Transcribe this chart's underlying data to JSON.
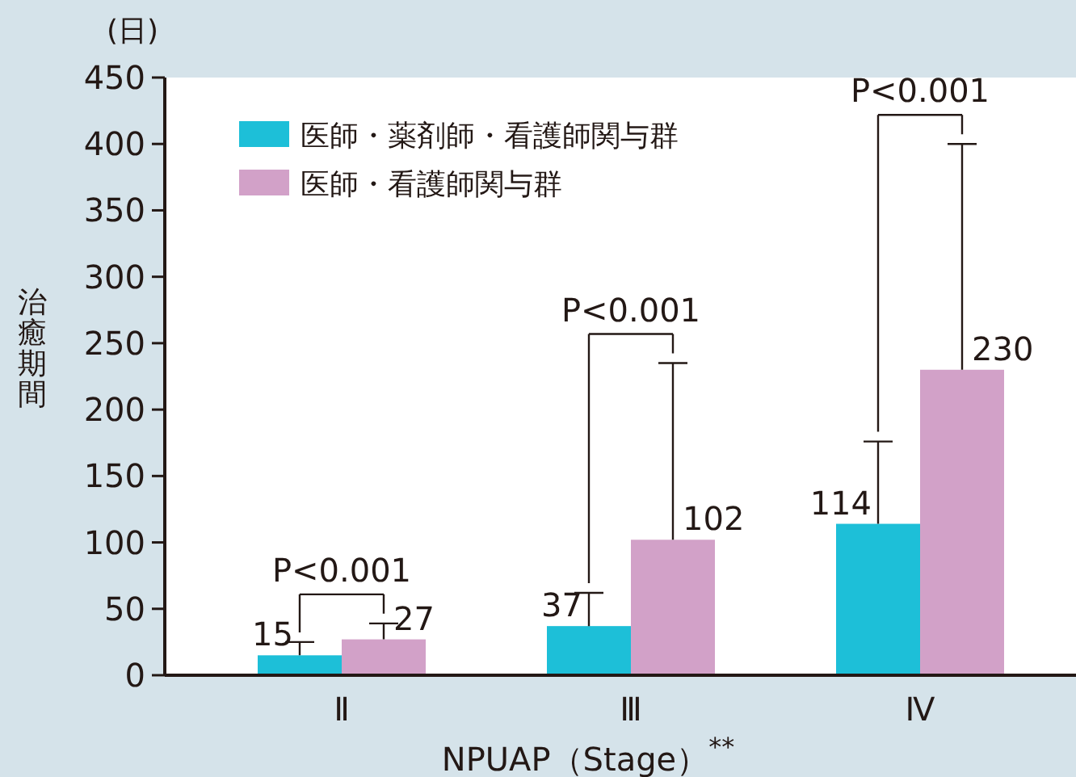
{
  "chart_data": {
    "type": "bar",
    "ylabel": "治癒期間",
    "xlabel": "NPUAP（Stage）$^{**}$",
    "categories": [
      "Ⅱ",
      "Ⅲ",
      "Ⅳ"
    ],
    "series": [
      {
        "name": "医師・薬剤師・看護師関与群",
        "color": "#1dbfd8",
        "values": [
          15,
          37,
          114
        ],
        "errors": [
          [
            15,
            25
          ],
          [
            37,
            62
          ],
          [
            114,
            176
          ]
        ]
      },
      {
        "name": "医師・看護師関与群",
        "color": "#d2a1c8",
        "values": [
          27,
          102,
          230
        ],
        "errors": [
          [
            27,
            39
          ],
          [
            102,
            235
          ],
          [
            230,
            400
          ]
        ]
      }
    ],
    "ylim": [
      0,
      450
    ],
    "yticks": [
      0,
      50,
      100,
      150,
      200,
      250,
      300,
      350,
      400,
      450
    ],
    "data_labels": true,
    "legend": "top left",
    "grid": false,
    "annotations": [
      "(日)",
      "P<0.001",
      "P<0.001",
      "P<0.001"
    ]
  }
}
